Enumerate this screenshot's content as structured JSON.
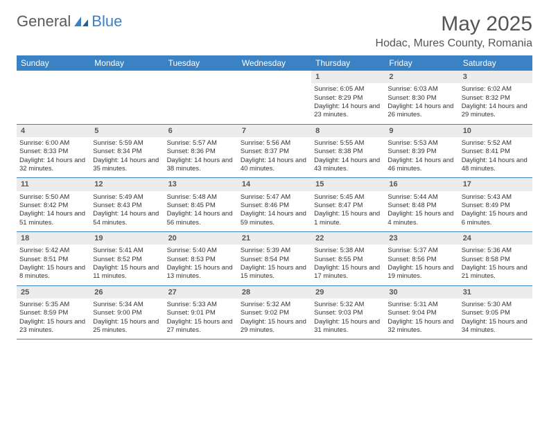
{
  "brand": {
    "part1": "General",
    "part2": "Blue"
  },
  "title": {
    "month": "May 2025",
    "location": "Hodac, Mures County, Romania"
  },
  "colors": {
    "accent": "#3b82c4",
    "daynum_bg": "#ececec",
    "text": "#333333",
    "header_text": "#555555"
  },
  "weekdays": [
    "Sunday",
    "Monday",
    "Tuesday",
    "Wednesday",
    "Thursday",
    "Friday",
    "Saturday"
  ],
  "weeks": [
    {
      "nums": [
        "",
        "",
        "",
        "",
        "1",
        "2",
        "3"
      ],
      "info": [
        "",
        "",
        "",
        "",
        "Sunrise: 6:05 AM\nSunset: 8:29 PM\nDaylight: 14 hours and 23 minutes.",
        "Sunrise: 6:03 AM\nSunset: 8:30 PM\nDaylight: 14 hours and 26 minutes.",
        "Sunrise: 6:02 AM\nSunset: 8:32 PM\nDaylight: 14 hours and 29 minutes."
      ]
    },
    {
      "nums": [
        "4",
        "5",
        "6",
        "7",
        "8",
        "9",
        "10"
      ],
      "info": [
        "Sunrise: 6:00 AM\nSunset: 8:33 PM\nDaylight: 14 hours and 32 minutes.",
        "Sunrise: 5:59 AM\nSunset: 8:34 PM\nDaylight: 14 hours and 35 minutes.",
        "Sunrise: 5:57 AM\nSunset: 8:36 PM\nDaylight: 14 hours and 38 minutes.",
        "Sunrise: 5:56 AM\nSunset: 8:37 PM\nDaylight: 14 hours and 40 minutes.",
        "Sunrise: 5:55 AM\nSunset: 8:38 PM\nDaylight: 14 hours and 43 minutes.",
        "Sunrise: 5:53 AM\nSunset: 8:39 PM\nDaylight: 14 hours and 46 minutes.",
        "Sunrise: 5:52 AM\nSunset: 8:41 PM\nDaylight: 14 hours and 48 minutes."
      ]
    },
    {
      "nums": [
        "11",
        "12",
        "13",
        "14",
        "15",
        "16",
        "17"
      ],
      "info": [
        "Sunrise: 5:50 AM\nSunset: 8:42 PM\nDaylight: 14 hours and 51 minutes.",
        "Sunrise: 5:49 AM\nSunset: 8:43 PM\nDaylight: 14 hours and 54 minutes.",
        "Sunrise: 5:48 AM\nSunset: 8:45 PM\nDaylight: 14 hours and 56 minutes.",
        "Sunrise: 5:47 AM\nSunset: 8:46 PM\nDaylight: 14 hours and 59 minutes.",
        "Sunrise: 5:45 AM\nSunset: 8:47 PM\nDaylight: 15 hours and 1 minute.",
        "Sunrise: 5:44 AM\nSunset: 8:48 PM\nDaylight: 15 hours and 4 minutes.",
        "Sunrise: 5:43 AM\nSunset: 8:49 PM\nDaylight: 15 hours and 6 minutes."
      ]
    },
    {
      "nums": [
        "18",
        "19",
        "20",
        "21",
        "22",
        "23",
        "24"
      ],
      "info": [
        "Sunrise: 5:42 AM\nSunset: 8:51 PM\nDaylight: 15 hours and 8 minutes.",
        "Sunrise: 5:41 AM\nSunset: 8:52 PM\nDaylight: 15 hours and 11 minutes.",
        "Sunrise: 5:40 AM\nSunset: 8:53 PM\nDaylight: 15 hours and 13 minutes.",
        "Sunrise: 5:39 AM\nSunset: 8:54 PM\nDaylight: 15 hours and 15 minutes.",
        "Sunrise: 5:38 AM\nSunset: 8:55 PM\nDaylight: 15 hours and 17 minutes.",
        "Sunrise: 5:37 AM\nSunset: 8:56 PM\nDaylight: 15 hours and 19 minutes.",
        "Sunrise: 5:36 AM\nSunset: 8:58 PM\nDaylight: 15 hours and 21 minutes."
      ]
    },
    {
      "nums": [
        "25",
        "26",
        "27",
        "28",
        "29",
        "30",
        "31"
      ],
      "info": [
        "Sunrise: 5:35 AM\nSunset: 8:59 PM\nDaylight: 15 hours and 23 minutes.",
        "Sunrise: 5:34 AM\nSunset: 9:00 PM\nDaylight: 15 hours and 25 minutes.",
        "Sunrise: 5:33 AM\nSunset: 9:01 PM\nDaylight: 15 hours and 27 minutes.",
        "Sunrise: 5:32 AM\nSunset: 9:02 PM\nDaylight: 15 hours and 29 minutes.",
        "Sunrise: 5:32 AM\nSunset: 9:03 PM\nDaylight: 15 hours and 31 minutes.",
        "Sunrise: 5:31 AM\nSunset: 9:04 PM\nDaylight: 15 hours and 32 minutes.",
        "Sunrise: 5:30 AM\nSunset: 9:05 PM\nDaylight: 15 hours and 34 minutes."
      ]
    }
  ]
}
